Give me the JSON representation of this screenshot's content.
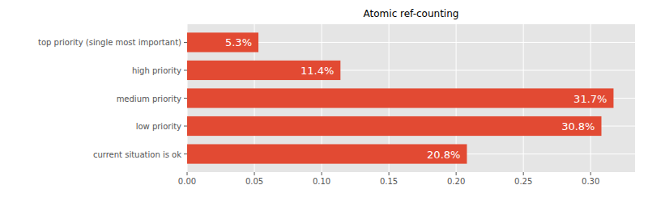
{
  "chart_data": {
    "type": "bar",
    "title": "Atomic ref-counting",
    "orientation": "horizontal",
    "categories": [
      "top priority (single most important)",
      "high priority",
      "medium priority",
      "low priority",
      "current situation is ok"
    ],
    "values": [
      0.053,
      0.114,
      0.317,
      0.308,
      0.208
    ],
    "value_labels": [
      "5.3%",
      "11.4%",
      "31.7%",
      "30.8%",
      "20.8%"
    ],
    "data_labels": true,
    "color": "#e24a33",
    "xlim": [
      0,
      0.333
    ],
    "xticks": [
      {
        "value": 0,
        "label": "0.00"
      },
      {
        "value": 0.05,
        "label": "0.05"
      },
      {
        "value": 0.1,
        "label": "0.10"
      },
      {
        "value": 0.15,
        "label": "0.15"
      },
      {
        "value": 0.2,
        "label": "0.20"
      },
      {
        "value": 0.25,
        "label": "0.25"
      },
      {
        "value": 0.3,
        "label": "0.30"
      }
    ],
    "grid": true
  }
}
